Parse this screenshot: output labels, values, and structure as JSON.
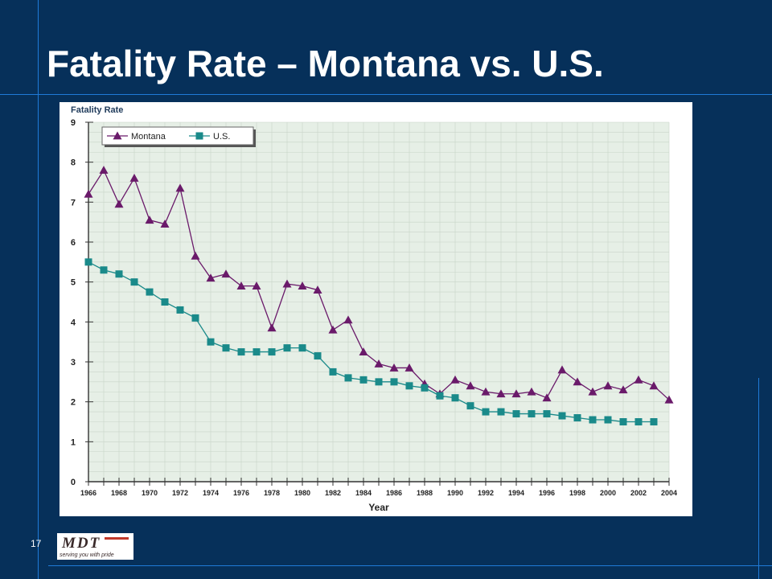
{
  "slide": {
    "title": "Fatality Rate – Montana vs. U.S.",
    "page_number": "17",
    "logo_text": "MDT",
    "logo_tagline": "serving you with pride"
  },
  "colors": {
    "background": "#06305a",
    "accent_line": "#1f7ad8",
    "montana": "#6a1a6a",
    "us": "#1a8a8a",
    "plot_bg": "#e6efe6",
    "grid": "#c8d4c8"
  },
  "chart_data": {
    "type": "line",
    "title": "Fatality Rate",
    "xlabel": "Year",
    "ylabel": "",
    "xlim": [
      1966,
      2004
    ],
    "ylim": [
      0,
      9
    ],
    "x_ticks": [
      "1966",
      "1968",
      "1970",
      "1972",
      "1974",
      "1976",
      "1978",
      "1980",
      "1982",
      "1984",
      "1986",
      "1988",
      "1990",
      "1992",
      "1994",
      "1996",
      "1998",
      "2000",
      "2002",
      "2004"
    ],
    "y_ticks": [
      "0",
      "1",
      "2",
      "3",
      "4",
      "5",
      "6",
      "7",
      "8",
      "9"
    ],
    "grid": true,
    "legend_position": "top-left",
    "x": [
      1966,
      1967,
      1968,
      1969,
      1970,
      1971,
      1972,
      1973,
      1974,
      1975,
      1976,
      1977,
      1978,
      1979,
      1980,
      1981,
      1982,
      1983,
      1984,
      1985,
      1986,
      1987,
      1988,
      1989,
      1990,
      1991,
      1992,
      1993,
      1994,
      1995,
      1996,
      1997,
      1998,
      1999,
      2000,
      2001,
      2002,
      2003,
      2004
    ],
    "series": [
      {
        "name": "Montana",
        "marker": "triangle",
        "values": [
          7.2,
          7.8,
          6.95,
          7.6,
          6.55,
          6.45,
          7.35,
          5.65,
          5.1,
          5.2,
          4.9,
          4.9,
          3.85,
          4.95,
          4.9,
          4.8,
          3.8,
          4.05,
          3.25,
          2.95,
          2.85,
          2.85,
          2.45,
          2.2,
          2.55,
          2.4,
          2.25,
          2.2,
          2.2,
          2.25,
          2.1,
          2.8,
          2.5,
          2.25,
          2.4,
          2.3,
          2.55,
          2.4,
          2.05
        ]
      },
      {
        "name": "U.S.",
        "marker": "square",
        "values": [
          5.5,
          5.3,
          5.2,
          5.0,
          4.75,
          4.5,
          4.3,
          4.1,
          3.5,
          3.35,
          3.25,
          3.25,
          3.25,
          3.35,
          3.35,
          3.15,
          2.75,
          2.6,
          2.55,
          2.5,
          2.5,
          2.4,
          2.35,
          2.15,
          2.1,
          1.9,
          1.75,
          1.75,
          1.7,
          1.7,
          1.7,
          1.65,
          1.6,
          1.55,
          1.55,
          1.5,
          1.5,
          1.5,
          null
        ]
      }
    ]
  }
}
